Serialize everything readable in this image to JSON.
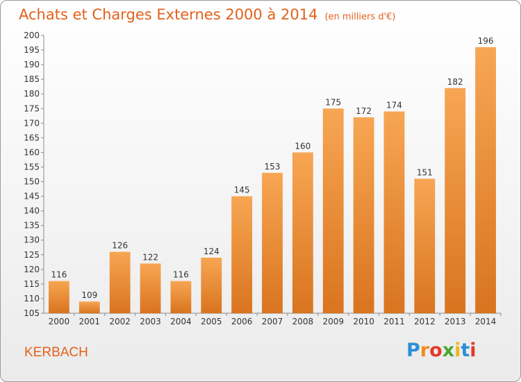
{
  "header": {
    "title": "Achats et Charges Externes 2000 à 2014",
    "unit": "(en milliers d'€)"
  },
  "footer": {
    "commune": "KERBACH",
    "logo": "Proxiti"
  },
  "colors": {
    "bar_top": "#f7a653",
    "bar_bottom": "#d9741f",
    "title": "#e2611c",
    "axis": "#8a8a8a"
  },
  "chart_data": {
    "type": "bar",
    "title": "Achats et Charges Externes 2000 à 2014",
    "subtitle": "(en milliers d'€)",
    "categories": [
      "2000",
      "2001",
      "2002",
      "2003",
      "2004",
      "2005",
      "2006",
      "2007",
      "2008",
      "2009",
      "2010",
      "2011",
      "2012",
      "2013",
      "2014"
    ],
    "values": [
      116,
      109,
      126,
      122,
      116,
      124,
      145,
      153,
      160,
      175,
      172,
      174,
      151,
      182,
      196
    ],
    "ylim": [
      105,
      200
    ],
    "ytick_step": 5,
    "grid": false,
    "legend": "none"
  }
}
